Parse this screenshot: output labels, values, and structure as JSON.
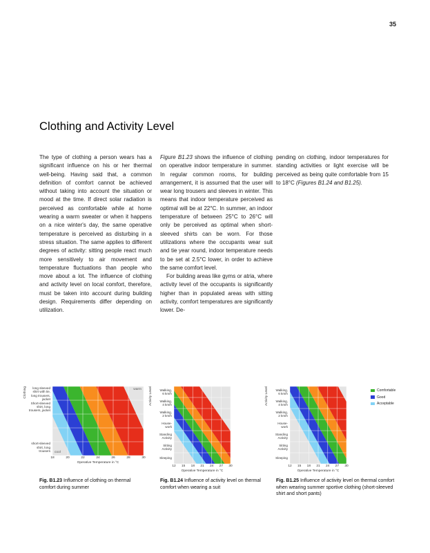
{
  "page_number": "35",
  "heading": "Clothing and Activity Level",
  "body": {
    "col1": "The type of clothing a person wears has a significant influence on his or her thermal well-being. Having said that, a common definition of comfort cannot be achieved without taking into account the situation or mood at the time. If direct solar radiation is perceived as comfortable while at home wearing a warm sweater or when it happens on a nice winter's day, the same operative temperature is perceived as disturbing in a stress situation. The same applies to different degrees of activity: sitting people react much more sensitively to air movement and temperature fluctuations than people who move about a lot. The influence of clothing and activity level on local comfort, therefore, must be taken into account during building design. Requirements differ depending on utilization.",
    "col2_lead_italic": "Figure B1.23",
    "col2_para1_rest": " shows the influence of clothing on operative indoor temperature in summer. In regular common rooms, for building arrangement, it is assumed that the user will wear long trousers and sleeves in winter. This means that indoor temperature perceived as optimal will be at 22°C. In summer, an indoor temperature of between 25°C to 26°C will only be perceived as optimal when short-sleeved shirts can be worn. For those utilizations where the occupants wear suit and tie year round, indoor temperature needs to be set at 2.5°C lower, in order to achieve the same comfort level.",
    "col2_para2": "For building areas like gyms or atria, where activity level of the occupants is significantly higher than in populated areas with sitting activity, comfort temperatures are significantly lower. De-",
    "col3_text": "pending on clothing, indoor temperatures for standing activities or light exercise will be perceived as being quite comfortable from 15 to 18°C ",
    "col3_italic": "(Figures B1.24 and B1.25)."
  },
  "legend": {
    "items": [
      {
        "label": "Comfortable",
        "color": "#3bb52e"
      },
      {
        "label": "Good",
        "color": "#2b3fd4"
      },
      {
        "label": "Acceptable",
        "color": "#82d2f5"
      }
    ]
  },
  "charts": [
    {
      "y_title": "Clothing",
      "categories": [
        "long sleeved\nshirt with tie,\nlong trousers,\njacket",
        "Short-sleeved\nshirt, long\ntrousers, jacket",
        "",
        "",
        "short-sleeved\nshirt, long\ntrousers"
      ],
      "x_ticks": [
        "18",
        "20",
        "22",
        "24",
        "26",
        "28",
        "30"
      ],
      "x_label": "Operative Temperature in °C",
      "corner_top_right": "warm",
      "corner_bottom_left": "cool",
      "plot_bg": "#e4e4e4",
      "bands": {
        "colors": [
          "#82d2f5",
          "#2b3fd4",
          "#3bb52e",
          "#f88d1e",
          "#e62e1b"
        ],
        "boundaries_top": [
          -0.15,
          -0.02,
          0.12,
          0.3,
          0.48,
          0.78
        ],
        "slope": 0.35
      }
    },
    {
      "y_title": "Activity Level",
      "categories": [
        "Walking,\n6 km/h",
        "Walking,\n4 km/h",
        "Walking,\n2 km/h",
        "House-\nwork",
        "Standing\nActivity",
        "Sitting\nActivity",
        "Sleeping"
      ],
      "x_ticks": [
        "12",
        "15",
        "18",
        "21",
        "24",
        "27",
        "30"
      ],
      "x_label": "Operative Temperature in °C",
      "corner_top_right": "",
      "corner_bottom_left": "",
      "plot_bg": "#e4e4e4",
      "bands": {
        "colors": [
          "#82d2f5",
          "#2b3fd4",
          "#3bb52e",
          "#f88d1e",
          "#e62e1b"
        ],
        "boundaries_top": [
          -0.55,
          -0.38,
          -0.22,
          -0.05,
          0.12,
          0.45
        ],
        "slope": 0.95
      }
    },
    {
      "y_title": "Activity Level",
      "categories": [
        "Walking,\n6 km/h",
        "Walking,\n4 km/h",
        "Walking,\n2 km/h",
        "House-\nwork",
        "Standing\nActivity",
        "Sitting\nActivity",
        "Sleeping"
      ],
      "x_ticks": [
        "12",
        "15",
        "18",
        "21",
        "24",
        "27",
        "30"
      ],
      "x_label": "Operative Temperature in °C",
      "corner_top_right": "",
      "corner_bottom_left": "",
      "plot_bg": "#e4e4e4",
      "bands": {
        "colors": [
          "#82d2f5",
          "#2b3fd4",
          "#3bb52e",
          "#f88d1e",
          "#e62e1b"
        ],
        "boundaries_top": [
          -0.2,
          -0.05,
          0.12,
          0.3,
          0.48,
          0.85
        ],
        "slope": 0.75
      }
    }
  ],
  "captions": [
    {
      "fig": "Fig. B1.23",
      "text": "Influence of clothing on thermal comfort during summer"
    },
    {
      "fig": "Fig. B1.24",
      "text": "Influence of activity level on thermal comfort when wearing a suit"
    },
    {
      "fig": "Fig. B1.25",
      "text": "Influence of activity level on thermal comfort when wearing summer sportive clothing (short-sleeved shirt and short pants)"
    }
  ]
}
